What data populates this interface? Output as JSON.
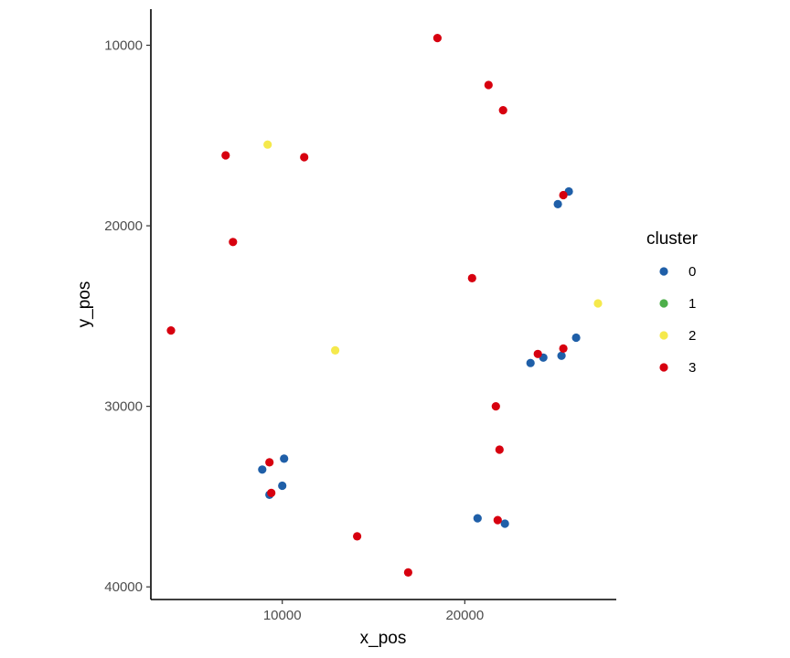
{
  "chart_data": {
    "type": "scatter",
    "xlabel": "x_pos",
    "ylabel": "y_pos",
    "xlim": [
      2800,
      28300
    ],
    "ylim": [
      8000,
      40700
    ],
    "y_reversed": true,
    "x_ticks": [
      10000,
      20000
    ],
    "y_ticks": [
      10000,
      20000,
      30000,
      40000
    ],
    "x_tick_labels": [
      "10000",
      "20000"
    ],
    "y_tick_labels": [
      "10000",
      "20000",
      "30000",
      "40000"
    ],
    "grid": false,
    "legend": {
      "title": "cluster",
      "placement": "right",
      "entries": [
        {
          "label": "0",
          "color": "#1f5fa8"
        },
        {
          "label": "1",
          "color": "#4daf4a"
        },
        {
          "label": "2",
          "color": "#f5e94c"
        },
        {
          "label": "3",
          "color": "#d7000f"
        }
      ]
    },
    "series": [
      {
        "name": "0",
        "points": [
          [
            25700,
            18100
          ],
          [
            25100,
            18800
          ],
          [
            26100,
            26200
          ],
          [
            25300,
            27200
          ],
          [
            24300,
            27300
          ],
          [
            23600,
            27600
          ],
          [
            10100,
            32900
          ],
          [
            8900,
            33500
          ],
          [
            10000,
            34400
          ],
          [
            9300,
            34900
          ],
          [
            20700,
            36200
          ],
          [
            22200,
            36500
          ]
        ]
      },
      {
        "name": "1",
        "points": []
      },
      {
        "name": "2",
        "points": [
          [
            9200,
            15500
          ],
          [
            27300,
            24300
          ],
          [
            12900,
            26900
          ]
        ]
      },
      {
        "name": "3",
        "points": [
          [
            18500,
            9600
          ],
          [
            21300,
            12200
          ],
          [
            22100,
            13600
          ],
          [
            6900,
            16100
          ],
          [
            11200,
            16200
          ],
          [
            25400,
            18300
          ],
          [
            7300,
            20900
          ],
          [
            20400,
            22900
          ],
          [
            3900,
            25800
          ],
          [
            24000,
            27100
          ],
          [
            25400,
            26800
          ],
          [
            21700,
            30000
          ],
          [
            21900,
            32400
          ],
          [
            9300,
            33100
          ],
          [
            9400,
            34800
          ],
          [
            21800,
            36300
          ],
          [
            14100,
            37200
          ],
          [
            16900,
            39200
          ]
        ]
      }
    ]
  }
}
